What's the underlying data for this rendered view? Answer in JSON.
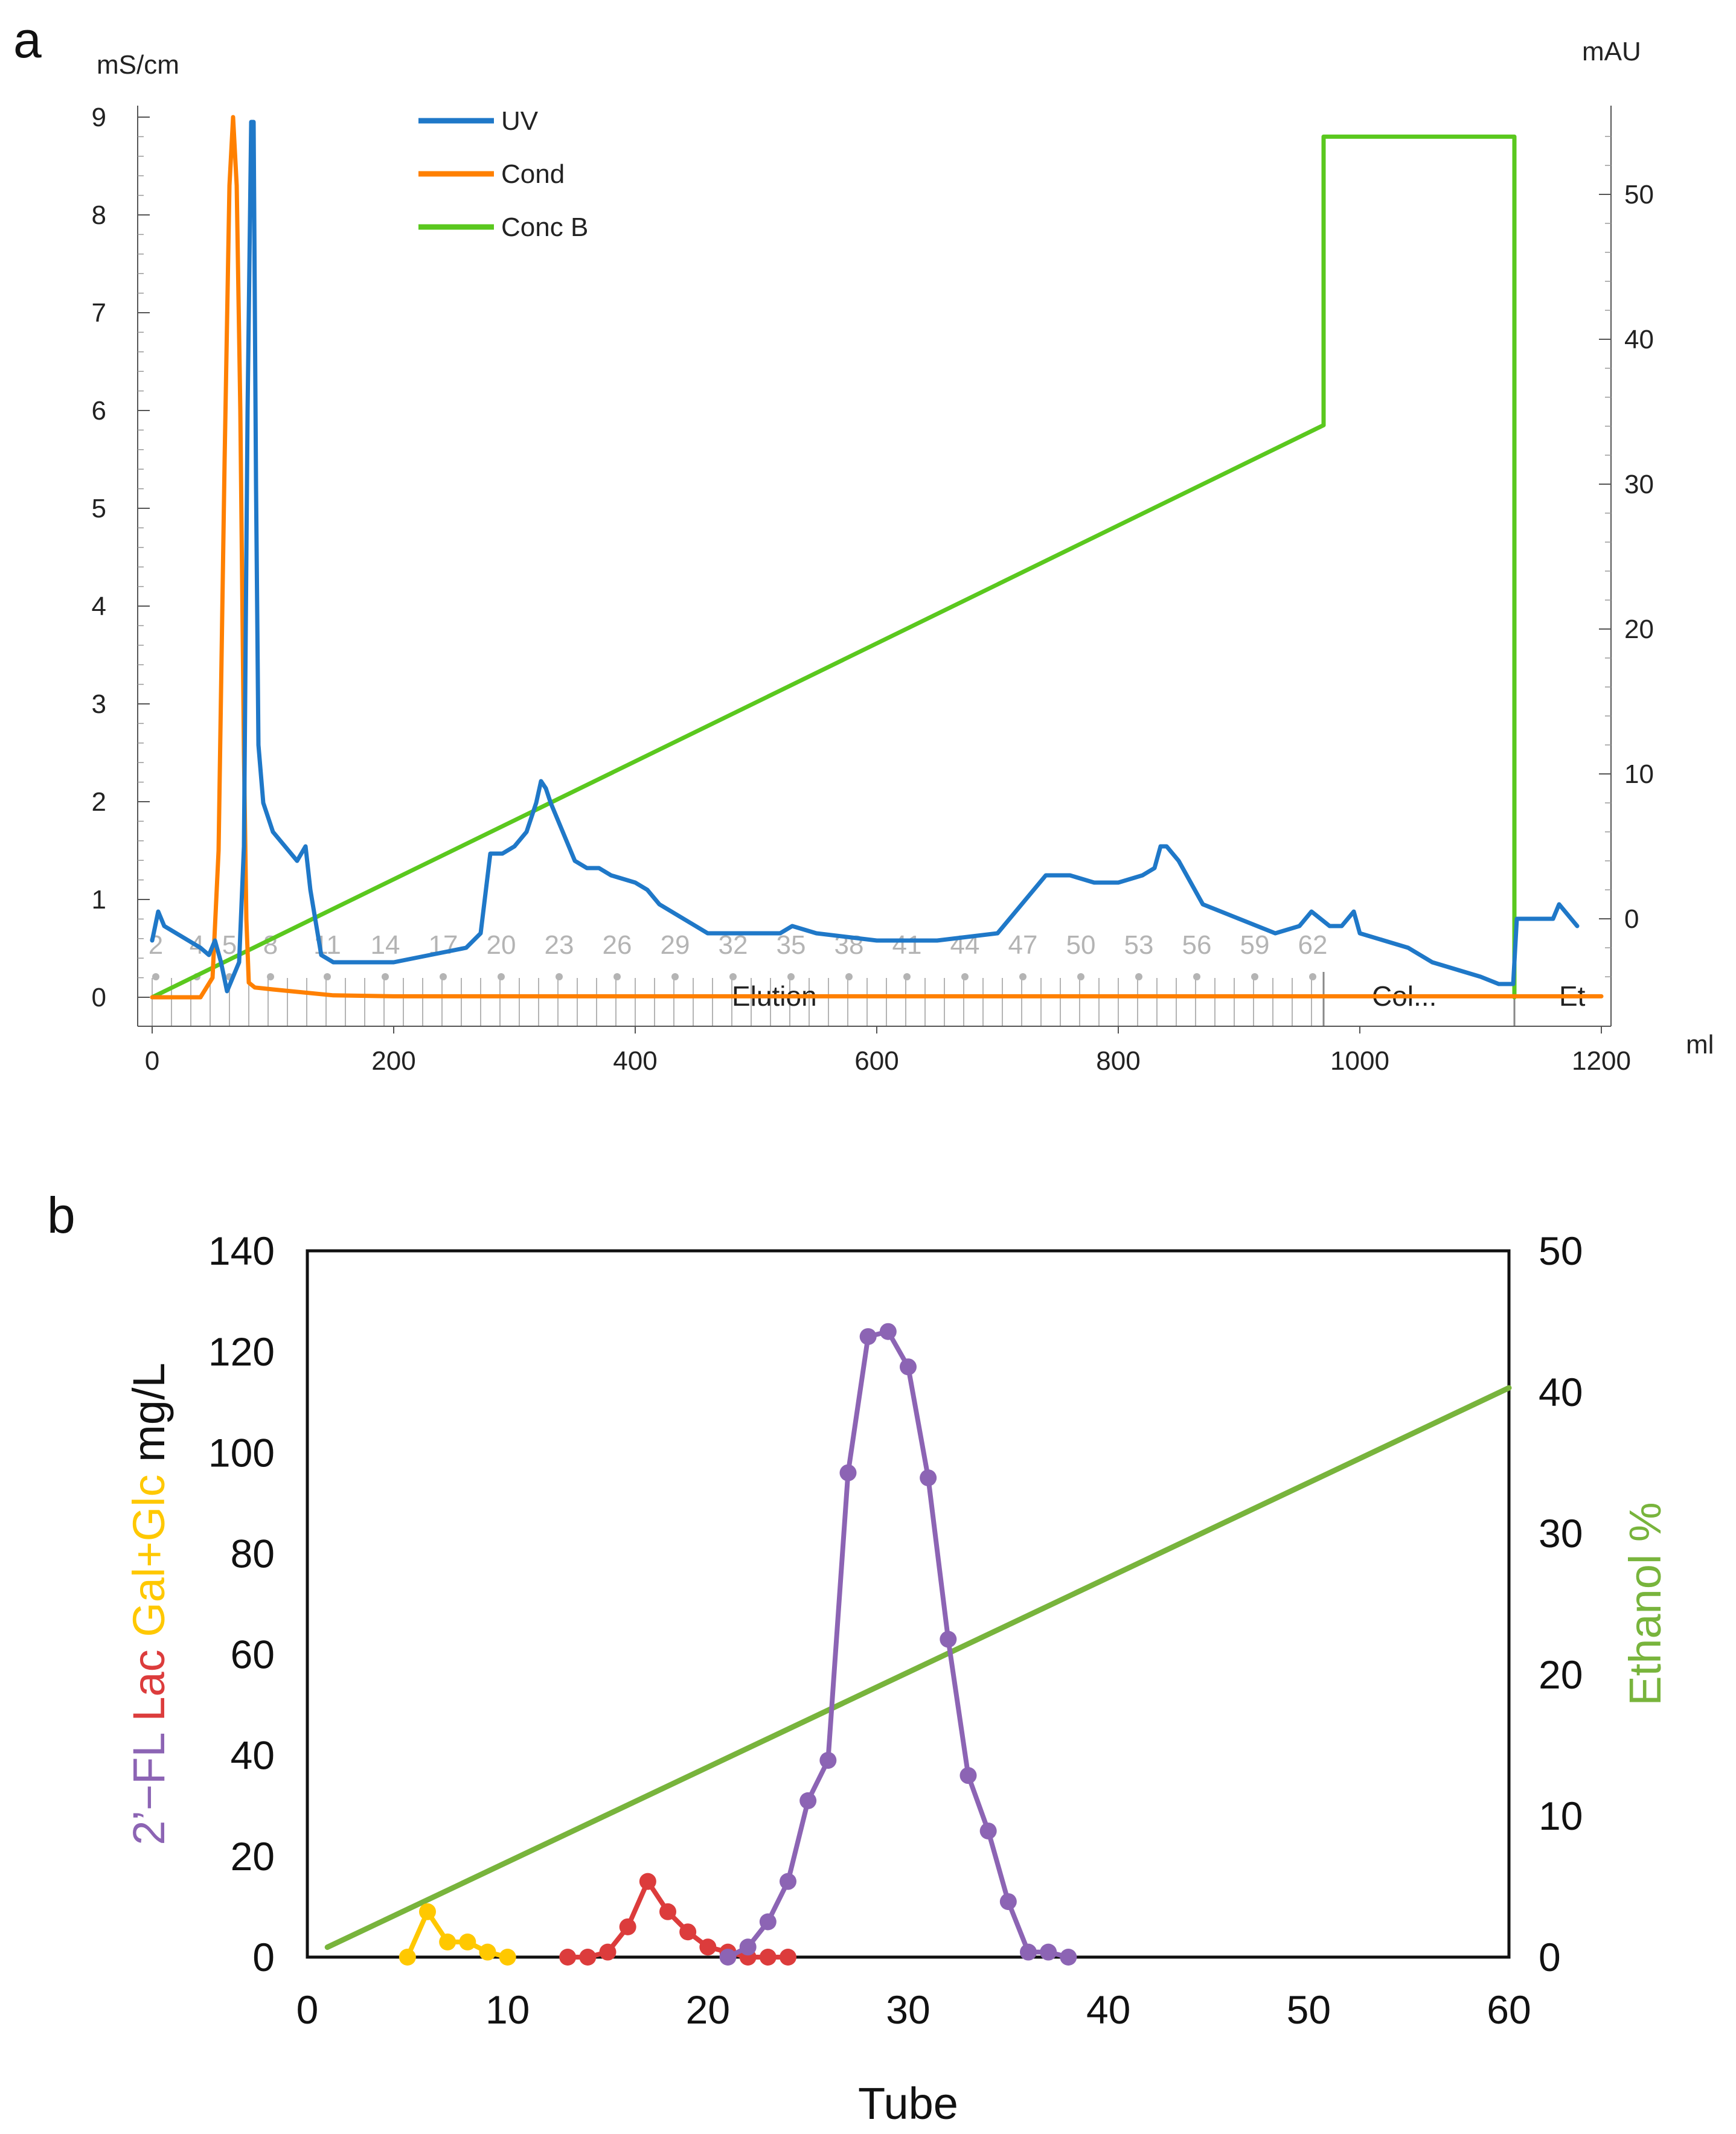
{
  "panel_a": {
    "label": "a",
    "left_axis_unit": "mS/cm",
    "right_axis_unit": "mAU",
    "x_axis_unit": "ml",
    "legend": [
      "UV",
      "Cond",
      "Conc B"
    ],
    "colors": {
      "UV": "#1f78c8",
      "Cond": "#ff8000",
      "Conc B": "#5ac81e",
      "fractions": "#b4b4b4"
    },
    "phase_labels": [
      {
        "text": "Elution",
        "x": 480
      },
      {
        "text": "Col...",
        "x": 1010
      },
      {
        "text": "Et",
        "x": 1165
      }
    ],
    "fraction_tick_labels": [
      "2",
      "4",
      "5",
      "8",
      "11",
      "14",
      "17",
      "20",
      "23",
      "26",
      "29",
      "32",
      "35",
      "38",
      "41",
      "44",
      "47",
      "50",
      "53",
      "56",
      "59",
      "62"
    ],
    "fraction_label_x": [
      3,
      37,
      64,
      98,
      145,
      193,
      241,
      289,
      337,
      385,
      433,
      481,
      529,
      577,
      625,
      673,
      721,
      769,
      817,
      865,
      913,
      961
    ],
    "chart_data": {
      "type": "line",
      "xlim": [
        0,
        1200
      ],
      "xticks": [
        0,
        200,
        400,
        600,
        800,
        1000,
        1200
      ],
      "ylim_left": [
        0,
        9
      ],
      "yticks_left": [
        0,
        1,
        2,
        3,
        4,
        5,
        6,
        7,
        8,
        9
      ],
      "ylim_right": [
        -5,
        55
      ],
      "yticks_right": [
        0,
        10,
        20,
        30,
        40,
        50
      ],
      "series": [
        {
          "name": "UV",
          "axis": "right",
          "x": [
            0,
            5,
            10,
            20,
            30,
            40,
            47,
            52,
            57,
            62,
            67,
            72,
            76,
            79,
            82,
            84,
            86,
            88,
            92,
            96,
            100,
            110,
            120,
            127,
            131,
            135,
            140,
            150,
            170,
            200,
            230,
            260,
            272,
            280,
            290,
            300,
            310,
            318,
            322,
            326,
            330,
            340,
            350,
            360,
            370,
            380,
            400,
            410,
            420,
            440,
            460,
            500,
            520,
            530,
            550,
            600,
            650,
            700,
            720,
            730,
            740,
            760,
            780,
            800,
            820,
            830,
            835,
            840,
            850,
            870,
            900,
            930,
            950,
            960,
            975,
            985,
            995,
            1000,
            1020,
            1040,
            1060,
            1080,
            1100,
            1115,
            1127,
            1130,
            1140,
            1160,
            1165,
            1175,
            1180
          ],
          "y": [
            -1.5,
            0.5,
            -0.5,
            -1,
            -1.5,
            -2,
            -2.5,
            -1.5,
            -3,
            -5,
            -4,
            -3,
            5,
            35,
            55,
            55,
            30,
            12,
            8,
            7,
            6,
            5,
            4,
            5,
            2,
            0,
            -2.5,
            -3,
            -3,
            -3,
            -2.5,
            -2,
            -1,
            4.5,
            4.5,
            5,
            6,
            8,
            9.5,
            9,
            8,
            6,
            4,
            3.5,
            3.5,
            3,
            2.5,
            2,
            1,
            0,
            -1,
            -1,
            -1,
            -0.5,
            -1,
            -1.5,
            -1.5,
            -1,
            1,
            2,
            3,
            3,
            2.5,
            2.5,
            3,
            3.5,
            5,
            5,
            4,
            1,
            0,
            -1,
            -0.5,
            0.5,
            -0.5,
            -0.5,
            0.5,
            -1,
            -1.5,
            -2,
            -3,
            -3.5,
            -4,
            -4.5,
            -4.5,
            0,
            0,
            0,
            1,
            0,
            -0.5
          ]
        },
        {
          "name": "Cond",
          "axis": "left",
          "x": [
            0,
            40,
            50,
            55,
            60,
            64,
            67,
            70,
            73,
            76,
            78,
            80,
            85,
            100,
            150,
            200,
            400,
            800,
            1200
          ],
          "y": [
            0,
            0,
            0.2,
            1.5,
            5.5,
            8.3,
            9.0,
            8.3,
            6.0,
            2.5,
            0.8,
            0.15,
            0.1,
            0.08,
            0.02,
            0.01,
            0.01,
            0.01,
            0.01
          ]
        },
        {
          "name": "Conc B",
          "axis": "left",
          "x": [
            0,
            970,
            970,
            1128,
            1128
          ],
          "y": [
            0,
            5.85,
            8.8,
            8.8,
            0
          ]
        }
      ]
    }
  },
  "panel_b": {
    "label": "b",
    "xlabel": "Tube",
    "left_label_parts": [
      {
        "text": "2’−FL ",
        "color": "#8c64b4"
      },
      {
        "text": "Lac ",
        "color": "#dc3c3c"
      },
      {
        "text": "Gal+Glc ",
        "color": "#ffc800"
      },
      {
        "text": "mg/L",
        "color": "#111111"
      }
    ],
    "right_label": {
      "text": "Ethanol %",
      "color": "#78b43c"
    },
    "chart_data": {
      "type": "line",
      "xlim": [
        0,
        60
      ],
      "xticks": [
        0,
        10,
        20,
        30,
        40,
        50,
        60
      ],
      "ylim_left": [
        0,
        140
      ],
      "yticks_left": [
        0,
        20,
        40,
        60,
        80,
        100,
        120,
        140
      ],
      "ylim_right": [
        0,
        50
      ],
      "yticks_right": [
        0,
        10,
        20,
        30,
        40,
        50
      ],
      "series": [
        {
          "name": "2’−FL",
          "color": "#8c64b4",
          "axis": "left",
          "markers": true,
          "x": [
            21,
            22,
            23,
            24,
            25,
            26,
            27,
            28,
            29,
            30,
            31,
            32,
            33,
            34,
            35,
            36,
            37,
            38
          ],
          "y": [
            0,
            2,
            7,
            15,
            31,
            39,
            96,
            123,
            124,
            117,
            95,
            63,
            36,
            25,
            11,
            1,
            1,
            0
          ]
        },
        {
          "name": "Lac",
          "color": "#dc3c3c",
          "axis": "left",
          "markers": true,
          "x": [
            13,
            14,
            15,
            16,
            17,
            18,
            19,
            20,
            21,
            22,
            23,
            24
          ],
          "y": [
            0,
            0,
            1,
            6,
            15,
            9,
            5,
            2,
            1,
            0,
            0,
            0
          ]
        },
        {
          "name": "Gal+Glc",
          "color": "#ffc800",
          "axis": "left",
          "markers": true,
          "x": [
            5,
            6,
            7,
            8,
            9,
            10
          ],
          "y": [
            0,
            9,
            3,
            3,
            1,
            0
          ]
        },
        {
          "name": "Ethanol %",
          "color": "#78b43c",
          "axis": "right",
          "markers": false,
          "x": [
            1,
            60
          ],
          "y": [
            0.7,
            40.3
          ]
        }
      ]
    }
  }
}
